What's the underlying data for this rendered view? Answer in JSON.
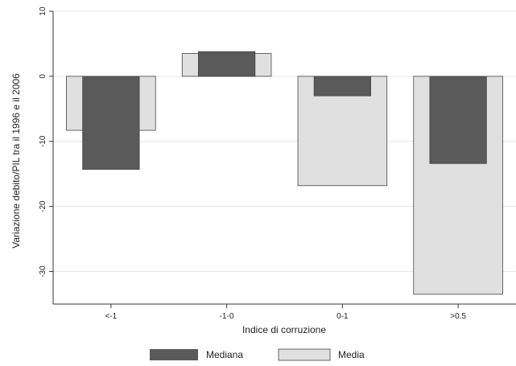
{
  "chart_data": {
    "type": "bar",
    "categories": [
      "<-1",
      "-1-0",
      "0-1",
      ">0.5"
    ],
    "series": [
      {
        "name": "Media",
        "values": [
          -8.3,
          3.5,
          -16.8,
          -33.5
        ],
        "color": "#e0e0e0"
      },
      {
        "name": "Mediana",
        "values": [
          -14.3,
          3.8,
          -3.0,
          -13.4
        ],
        "color": "#5a5a5a"
      }
    ],
    "xlabel": "Indice di corruzione",
    "ylabel": "Variazione debito/PIL tra il 1996 e il 2006",
    "ylim": [
      -35,
      10
    ],
    "yticks": [
      10,
      0,
      -10,
      -20,
      -30
    ],
    "grid": true,
    "legend": {
      "position": "bottom",
      "entries": [
        "Mediana",
        "Media"
      ]
    }
  }
}
